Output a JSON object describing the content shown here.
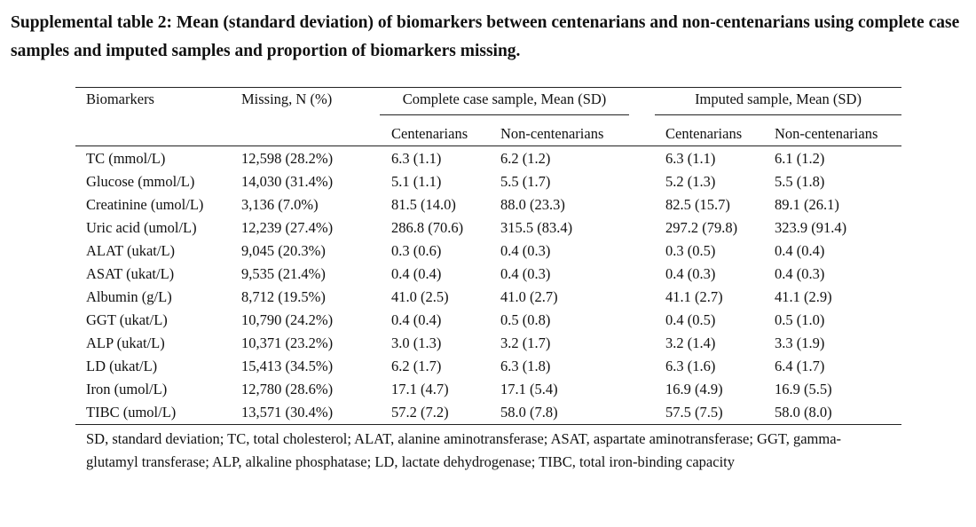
{
  "title": "Supplemental table 2:  Mean (standard deviation) of biomarkers between centenarians and non-centenarians using complete case samples and imputed samples and proportion of biomarkers missing.",
  "table": {
    "headers": {
      "biomarkers": "Biomarkers",
      "missing": "Missing, N (%)",
      "complete_group": "Complete case sample, Mean (SD)",
      "imputed_group": "Imputed sample, Mean (SD)",
      "complete_cent": "Centenarians",
      "complete_noncent": "Non-centenarians",
      "imputed_cent": "Centenarians",
      "imputed_noncent": "Non-centenarians"
    },
    "rows": [
      [
        "TC (mmol/L)",
        "12,598 (28.2%)",
        "6.3 (1.1)",
        "6.2 (1.2)",
        "6.3 (1.1)",
        "6.1 (1.2)"
      ],
      [
        "Glucose (mmol/L)",
        "14,030 (31.4%)",
        "5.1 (1.1)",
        "5.5 (1.7)",
        "5.2 (1.3)",
        "5.5 (1.8)"
      ],
      [
        "Creatinine (umol/L)",
        "3,136 (7.0%)",
        "81.5 (14.0)",
        "88.0 (23.3)",
        "82.5 (15.7)",
        "89.1 (26.1)"
      ],
      [
        "Uric acid (umol/L)",
        "12,239 (27.4%)",
        "286.8 (70.6)",
        "315.5 (83.4)",
        "297.2 (79.8)",
        "323.9 (91.4)"
      ],
      [
        "ALAT (ukat/L)",
        "9,045 (20.3%)",
        "0.3 (0.6)",
        "0.4 (0.3)",
        "0.3 (0.5)",
        "0.4 (0.4)"
      ],
      [
        "ASAT (ukat/L)",
        "9,535 (21.4%)",
        "0.4 (0.4)",
        "0.4 (0.3)",
        "0.4 (0.3)",
        "0.4 (0.3)"
      ],
      [
        "Albumin (g/L)",
        "8,712 (19.5%)",
        "41.0 (2.5)",
        "41.0 (2.7)",
        "41.1 (2.7)",
        "41.1 (2.9)"
      ],
      [
        "GGT (ukat/L)",
        "10,790 (24.2%)",
        "0.4 (0.4)",
        "0.5 (0.8)",
        "0.4 (0.5)",
        "0.5 (1.0)"
      ],
      [
        "ALP (ukat/L)",
        "10,371 (23.2%)",
        "3.0 (1.3)",
        "3.2 (1.7)",
        "3.2 (1.4)",
        "3.3 (1.9)"
      ],
      [
        "LD (ukat/L)",
        "15,413 (34.5%)",
        "6.2 (1.7)",
        "6.3 (1.8)",
        "6.3 (1.6)",
        "6.4 (1.7)"
      ],
      [
        "Iron (umol/L)",
        "12,780 (28.6%)",
        "17.1 (4.7)",
        "17.1 (5.4)",
        "16.9 (4.9)",
        "16.9 (5.5)"
      ],
      [
        "TIBC (umol/L)",
        "13,571 (30.4%)",
        "57.2 (7.2)",
        "58.0 (7.8)",
        "57.5 (7.5)",
        "58.0 (8.0)"
      ]
    ]
  },
  "footnote": "SD, standard deviation; TC, total cholesterol; ALAT, alanine aminotransferase; ASAT, aspartate aminotransferase; GGT, gamma-glutamyl transferase; ALP, alkaline phosphatase; LD, lactate dehydrogenase; TIBC, total iron-binding capacity"
}
